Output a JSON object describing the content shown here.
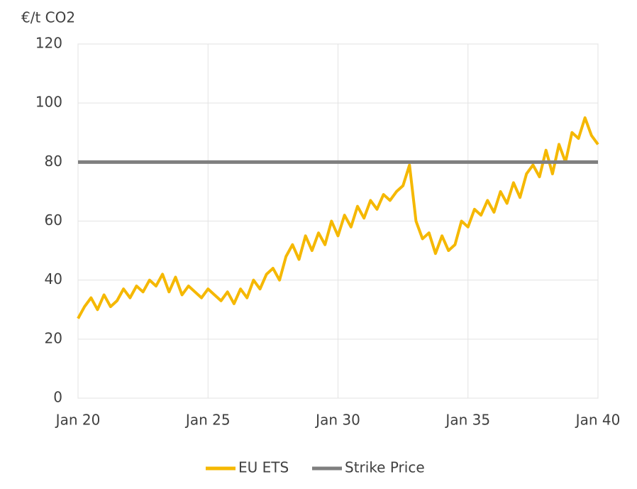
{
  "chart_data": {
    "type": "line",
    "y_label": "€/t CO2",
    "xlim": [
      20,
      40
    ],
    "xticks": [
      {
        "value": 20,
        "label": "Jan 20"
      },
      {
        "value": 25,
        "label": "Jan 25"
      },
      {
        "value": 30,
        "label": "Jan 30"
      },
      {
        "value": 35,
        "label": "Jan 35"
      },
      {
        "value": 40,
        "label": "Jan 40"
      }
    ],
    "ylim": [
      0,
      120
    ],
    "yticks": [
      0,
      20,
      40,
      60,
      80,
      100,
      120
    ],
    "grid": true,
    "legend": "bottom",
    "series": [
      {
        "name": "EU ETS",
        "color": "#f5b800",
        "x": [
          20,
          20.25,
          20.5,
          20.75,
          21,
          21.25,
          21.5,
          21.75,
          22,
          22.25,
          22.5,
          22.75,
          23,
          23.25,
          23.5,
          23.75,
          24,
          24.25,
          24.5,
          24.75,
          25,
          25.25,
          25.5,
          25.75,
          26,
          26.25,
          26.5,
          26.75,
          27,
          27.25,
          27.5,
          27.75,
          28,
          28.25,
          28.5,
          28.75,
          29,
          29.25,
          29.5,
          29.75,
          30,
          30.25,
          30.5,
          30.75,
          31,
          31.25,
          31.5,
          31.75,
          32,
          32.25,
          32.5,
          32.75,
          33,
          33.25,
          33.5,
          33.75,
          34,
          34.25,
          34.5,
          34.75,
          35,
          35.25,
          35.5,
          35.75,
          36,
          36.25,
          36.5,
          36.75,
          37,
          37.25,
          37.5,
          37.75,
          38,
          38.25,
          38.5,
          38.75,
          39,
          39.25,
          39.5,
          39.75,
          40
        ],
        "values": [
          27,
          31,
          34,
          30,
          35,
          31,
          33,
          37,
          34,
          38,
          36,
          40,
          38,
          42,
          36,
          41,
          35,
          38,
          36,
          34,
          37,
          35,
          33,
          36,
          32,
          37,
          34,
          40,
          37,
          42,
          44,
          40,
          48,
          52,
          47,
          55,
          50,
          56,
          52,
          60,
          55,
          62,
          58,
          65,
          61,
          67,
          64,
          69,
          67,
          70,
          72,
          79,
          60,
          54,
          56,
          49,
          55,
          50,
          52,
          60,
          58,
          64,
          62,
          67,
          63,
          70,
          66,
          73,
          68,
          76,
          79,
          75,
          84,
          76,
          86,
          80,
          90,
          88,
          95,
          89,
          86
        ]
      },
      {
        "name": "Strike Price",
        "color": "#7f7f7f",
        "x": [
          20,
          40
        ],
        "values": [
          80,
          80
        ]
      }
    ]
  }
}
